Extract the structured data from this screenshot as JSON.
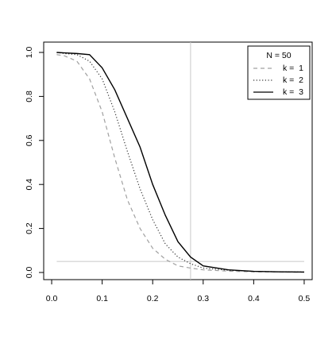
{
  "chart_data": {
    "type": "line",
    "x": [
      0.01,
      0.025,
      0.05,
      0.075,
      0.1,
      0.125,
      0.15,
      0.175,
      0.2,
      0.225,
      0.25,
      0.275,
      0.3,
      0.35,
      0.4,
      0.45,
      0.5
    ],
    "series": [
      {
        "name": "k =  1",
        "color": "#a0a0a0",
        "linestyle": "dashed",
        "values": [
          0.99,
          0.985,
          0.96,
          0.88,
          0.73,
          0.52,
          0.33,
          0.2,
          0.11,
          0.06,
          0.03,
          0.02,
          0.012,
          0.006,
          0.003,
          0.002,
          0.001
        ]
      },
      {
        "name": "k =  2",
        "color": "#333333",
        "linestyle": "dotted",
        "values": [
          1.0,
          0.995,
          0.99,
          0.96,
          0.88,
          0.73,
          0.55,
          0.38,
          0.24,
          0.13,
          0.07,
          0.04,
          0.02,
          0.01,
          0.005,
          0.003,
          0.002
        ]
      },
      {
        "name": "k =  3",
        "color": "#000000",
        "linestyle": "solid",
        "values": [
          1.0,
          0.998,
          0.995,
          0.99,
          0.93,
          0.83,
          0.7,
          0.57,
          0.4,
          0.26,
          0.14,
          0.07,
          0.03,
          0.012,
          0.005,
          0.003,
          0.002
        ]
      }
    ],
    "legend_title": "N =  50",
    "legend": "top-right",
    "hline": 0.05,
    "vline": 0.275,
    "refline_color": "#c8c8c8",
    "xlim": [
      -0.0158,
      0.5158
    ],
    "ylim": [
      -0.0325,
      1.0469
    ],
    "xticks": [
      {
        "value": 0,
        "label": "0.0"
      },
      0.1,
      0.2,
      0.3,
      0.4,
      0.5
    ],
    "yticks": [
      {
        "value": 0,
        "label": "0.0"
      },
      0.2,
      0.4,
      0.6,
      0.8,
      {
        "value": 1,
        "label": "1.0"
      }
    ]
  }
}
